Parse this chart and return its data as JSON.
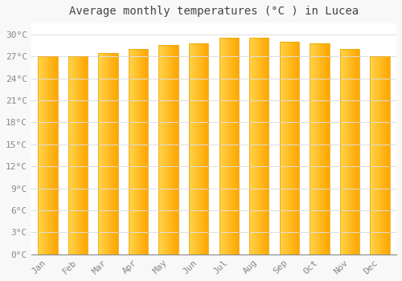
{
  "title": "Average monthly temperatures (°C ) in Lucea",
  "months": [
    "Jan",
    "Feb",
    "Mar",
    "Apr",
    "May",
    "Jun",
    "Jul",
    "Aug",
    "Sep",
    "Oct",
    "Nov",
    "Dec"
  ],
  "temperatures": [
    27.0,
    27.0,
    27.5,
    28.0,
    28.6,
    28.8,
    29.5,
    29.5,
    29.0,
    28.8,
    28.0,
    27.0
  ],
  "bar_color_left": "#FFD44A",
  "bar_color_right": "#FFA500",
  "bar_color_mid": "#FFBB20",
  "background_color": "#F8F8F8",
  "plot_bg_color": "#FFFFFF",
  "grid_color": "#DDDDDD",
  "yticks": [
    0,
    3,
    6,
    9,
    12,
    15,
    18,
    21,
    24,
    27,
    30
  ],
  "ylim": [
    0,
    31.5
  ],
  "title_fontsize": 10,
  "tick_fontsize": 8,
  "title_color": "#444444",
  "tick_color": "#888888",
  "bar_width": 0.65,
  "bar_edge_color": "#E8A000",
  "bar_edge_width": 0.5
}
